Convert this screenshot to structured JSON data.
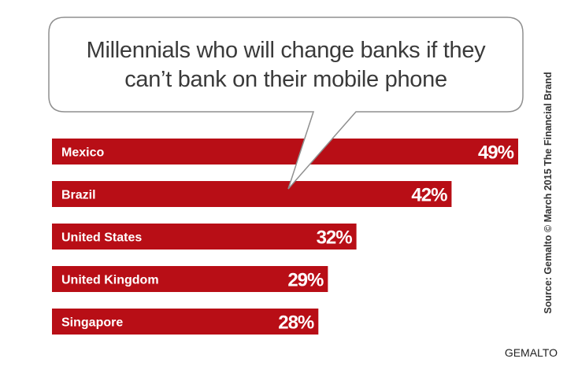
{
  "chart_data": {
    "type": "bar",
    "orientation": "horizontal",
    "title_lines": [
      "Millennials who will change banks if they",
      "can’t bank on their mobile phone"
    ],
    "categories": [
      "Mexico",
      "Brazil",
      "United States",
      "United Kingdom",
      "Singapore"
    ],
    "values": [
      49,
      42,
      32,
      29,
      28
    ],
    "value_labels": [
      "49%",
      "42%",
      "32%",
      "29%",
      "28%"
    ],
    "unit": "%",
    "bar_color": "#b80e16",
    "xlim": [
      0,
      49
    ],
    "grid": false,
    "legend": "none"
  },
  "source": "Source: Gemalto © March 2015 The Financial Brand",
  "watermark": "GEMALTO"
}
